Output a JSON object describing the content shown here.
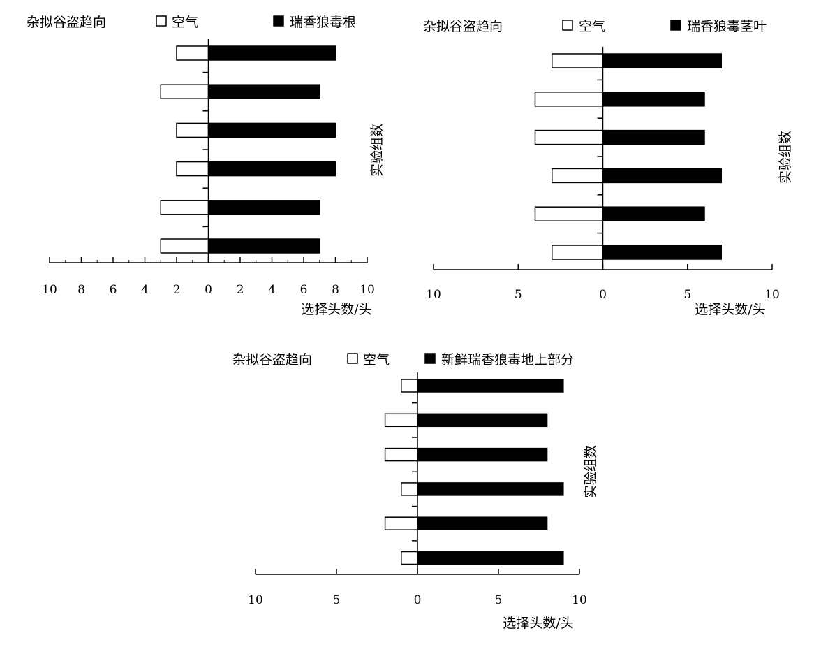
{
  "chart_data": [
    {
      "type": "bar",
      "orientation": "horizontal",
      "legend_title": "杂拟谷盗趋向",
      "xlabel": "选择头数/头",
      "ylabel": "实验组数",
      "xlim": [
        -10,
        10
      ],
      "x_ticks": [
        "10",
        "8",
        "6",
        "4",
        "2",
        "0",
        "2",
        "4",
        "6",
        "8",
        "10"
      ],
      "grid": false,
      "legend_position": "top",
      "series": [
        {
          "name": "空气",
          "color": "#ffffff",
          "values": [
            2,
            3,
            2,
            2,
            3,
            3
          ]
        },
        {
          "name": "瑞香狼毒根",
          "color": "#000000",
          "values": [
            8,
            7,
            8,
            8,
            7,
            7
          ]
        }
      ]
    },
    {
      "type": "bar",
      "orientation": "horizontal",
      "legend_title": "杂拟谷盗趋向",
      "xlabel": "选择头数/头",
      "ylabel": "实验组数",
      "xlim": [
        -10,
        10
      ],
      "x_ticks": [
        "10",
        "5",
        "0",
        "5",
        "10"
      ],
      "grid": false,
      "legend_position": "top",
      "series": [
        {
          "name": "空气",
          "color": "#ffffff",
          "values": [
            3,
            4,
            4,
            3,
            4,
            3
          ]
        },
        {
          "name": "瑞香狼毒茎叶",
          "color": "#000000",
          "values": [
            7,
            6,
            6,
            7,
            6,
            7
          ]
        }
      ]
    },
    {
      "type": "bar",
      "orientation": "horizontal",
      "legend_title": "杂拟谷盗趋向",
      "xlabel": "选择头数/头",
      "ylabel": "实验组数",
      "xlim": [
        -10,
        10
      ],
      "x_ticks": [
        "10",
        "5",
        "0",
        "5",
        "10"
      ],
      "grid": false,
      "legend_position": "top",
      "series": [
        {
          "name": "空气",
          "color": "#ffffff",
          "values": [
            1,
            2,
            2,
            1,
            2,
            1
          ]
        },
        {
          "name": "新鲜瑞香狼毒地上部分",
          "color": "#000000",
          "values": [
            9,
            8,
            8,
            9,
            8,
            9
          ]
        }
      ]
    }
  ]
}
